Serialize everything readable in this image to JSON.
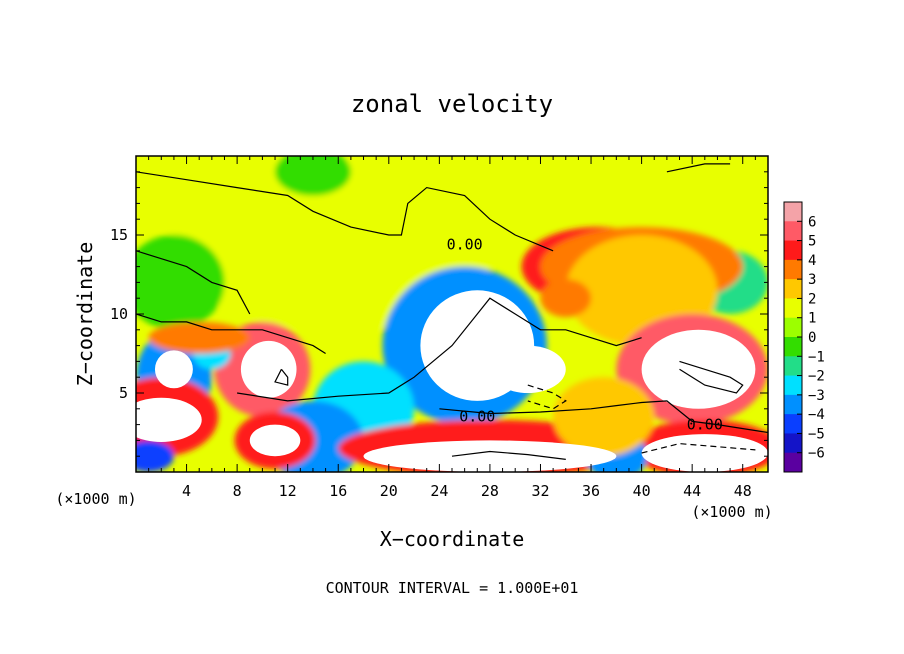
{
  "chart_data": {
    "type": "heatmap",
    "title": "zonal velocity",
    "xlabel": "X−coordinate",
    "ylabel": "Z−coordinate",
    "x_unit": "(×1000 m)",
    "xlim": [
      0,
      50
    ],
    "ylim": [
      0,
      20
    ],
    "x_ticks": [
      4,
      8,
      12,
      16,
      20,
      24,
      28,
      32,
      36,
      40,
      44,
      48
    ],
    "y_ticks": [
      5,
      10,
      15
    ],
    "contour_interval_text": "CONTOUR INTERVAL = 1.000E+01",
    "contour_labels": [
      {
        "text": "0.00",
        "x": 26,
        "y": 14.4
      },
      {
        "text": "0.00",
        "x": 27,
        "y": 3.5
      },
      {
        "text": "0.00",
        "x": 45,
        "y": 3.0
      }
    ],
    "colorbar": {
      "ticks": [
        6,
        5,
        4,
        3,
        2,
        1,
        0,
        -1,
        -2,
        -3,
        -4,
        -5,
        -6
      ],
      "tick_labels": [
        "6",
        "5",
        "4",
        "3",
        "2",
        "1",
        "0",
        "−1",
        "−2",
        "−3",
        "−4",
        "−5",
        "−6"
      ],
      "colors": [
        "#f4a3a8",
        "#ff5a66",
        "#ff1a1a",
        "#ff7a00",
        "#ffc800",
        "#e8ff00",
        "#9cff00",
        "#33dd00",
        "#22dd88",
        "#00e0ff",
        "#0090ff",
        "#0a3fff",
        "#1414c8",
        "#5a00a0"
      ]
    },
    "field_blobs": [
      {
        "x": 12,
        "y": 17,
        "rx": 12,
        "ry": 3,
        "v": 0.3
      },
      {
        "x": 16,
        "y": 13,
        "rx": 12,
        "ry": 4,
        "v": 0.6
      },
      {
        "x": 3,
        "y": 12,
        "rx": 4,
        "ry": 3,
        "v": -1.8
      },
      {
        "x": 14,
        "y": 19,
        "rx": 3,
        "ry": 1.5,
        "v": -1.5
      },
      {
        "x": 47,
        "y": 12,
        "rx": 3,
        "ry": 2,
        "v": -2
      },
      {
        "x": 26,
        "y": 8,
        "rx": 6.5,
        "ry": 5,
        "v": -4.5
      },
      {
        "x": 27,
        "y": 8,
        "rx": 4.5,
        "ry": 3.5,
        "v": -7
      },
      {
        "x": 31,
        "y": 6.5,
        "rx": 3,
        "ry": 1.5,
        "v": -7
      },
      {
        "x": 23,
        "y": 9,
        "rx": 2,
        "ry": 2,
        "v": -4
      },
      {
        "x": 10,
        "y": 6.5,
        "rx": 3.8,
        "ry": 3,
        "v": 4.5
      },
      {
        "x": 10.5,
        "y": 6.5,
        "rx": 2.2,
        "ry": 1.8,
        "v": 7
      },
      {
        "x": 3,
        "y": 6,
        "rx": 3,
        "ry": 3,
        "v": -4.5
      },
      {
        "x": 3,
        "y": 6.5,
        "rx": 1.5,
        "ry": 1.2,
        "v": -7
      },
      {
        "x": 6,
        "y": 7.5,
        "rx": 1.5,
        "ry": 1,
        "v": -3.5
      },
      {
        "x": 5,
        "y": 8.5,
        "rx": 4,
        "ry": 1,
        "v": 2.5
      },
      {
        "x": 18,
        "y": 4,
        "rx": 4,
        "ry": 3,
        "v": -3
      },
      {
        "x": 14,
        "y": 2,
        "rx": 4,
        "ry": 2.5,
        "v": -4.5
      },
      {
        "x": 11,
        "y": 2,
        "rx": 3.2,
        "ry": 1.8,
        "v": 4
      },
      {
        "x": 11,
        "y": 2,
        "rx": 2,
        "ry": 1,
        "v": 7
      },
      {
        "x": 2,
        "y": 3.5,
        "rx": 4.5,
        "ry": 2.5,
        "v": 4
      },
      {
        "x": 2,
        "y": 3.3,
        "rx": 3.2,
        "ry": 1.4,
        "v": 7
      },
      {
        "x": 1,
        "y": 1,
        "rx": 2,
        "ry": 1,
        "v": -5
      },
      {
        "x": 28,
        "y": 1.5,
        "rx": 12,
        "ry": 1.8,
        "v": 4
      },
      {
        "x": 28,
        "y": 1,
        "rx": 10,
        "ry": 1,
        "v": 7
      },
      {
        "x": 36,
        "y": 2,
        "rx": 2,
        "ry": 1,
        "v": 3
      },
      {
        "x": 36.5,
        "y": 13,
        "rx": 6,
        "ry": 2.5,
        "v": 4
      },
      {
        "x": 40,
        "y": 13,
        "rx": 8,
        "ry": 2.5,
        "v": 3
      },
      {
        "x": 40,
        "y": 11.5,
        "rx": 6,
        "ry": 3.5,
        "v": 2
      },
      {
        "x": 34,
        "y": 11,
        "rx": 2,
        "ry": 1.2,
        "v": 3
      },
      {
        "x": 44,
        "y": 6.5,
        "rx": 6,
        "ry": 3.5,
        "v": 4.5
      },
      {
        "x": 44.5,
        "y": 6.5,
        "rx": 4.5,
        "ry": 2.5,
        "v": 7
      },
      {
        "x": 45,
        "y": 1.5,
        "rx": 6,
        "ry": 1.8,
        "v": 4
      },
      {
        "x": 45,
        "y": 1.2,
        "rx": 5,
        "ry": 1.2,
        "v": 7
      },
      {
        "x": 38,
        "y": 1,
        "rx": 2.5,
        "ry": 1.5,
        "v": -4.5
      },
      {
        "x": 37,
        "y": 3.5,
        "rx": 4,
        "ry": 2.5,
        "v": 1.2
      }
    ],
    "contour_lines": [
      {
        "style": "solid",
        "points": [
          [
            0,
            19
          ],
          [
            4,
            18.5
          ],
          [
            8,
            18
          ],
          [
            12,
            17.5
          ],
          [
            14,
            16.5
          ],
          [
            17,
            15.5
          ],
          [
            20,
            15
          ],
          [
            21,
            15
          ],
          [
            21.5,
            17
          ],
          [
            23,
            18
          ],
          [
            26,
            17.5
          ],
          [
            28,
            16
          ],
          [
            30,
            15
          ],
          [
            33,
            14
          ]
        ]
      },
      {
        "style": "solid",
        "points": [
          [
            0,
            14
          ],
          [
            2,
            13.5
          ],
          [
            4,
            13
          ],
          [
            6,
            12
          ],
          [
            8,
            11.5
          ],
          [
            9,
            10
          ]
        ]
      },
      {
        "style": "solid",
        "points": [
          [
            0,
            10
          ],
          [
            2,
            9.5
          ],
          [
            4,
            9.5
          ],
          [
            6,
            9
          ],
          [
            8,
            9
          ],
          [
            10,
            9
          ],
          [
            12,
            8.5
          ],
          [
            14,
            8
          ],
          [
            15,
            7.5
          ]
        ]
      },
      {
        "style": "solid",
        "points": [
          [
            8,
            5
          ],
          [
            12,
            4.5
          ],
          [
            16,
            4.8
          ],
          [
            20,
            5
          ],
          [
            22,
            6
          ],
          [
            25,
            8
          ],
          [
            27,
            10
          ],
          [
            28,
            11
          ],
          [
            30,
            10
          ],
          [
            32,
            9
          ],
          [
            34,
            9
          ],
          [
            36,
            8.5
          ],
          [
            38,
            8
          ],
          [
            40,
            8.5
          ]
        ]
      },
      {
        "style": "solid",
        "points": [
          [
            24,
            4
          ],
          [
            28,
            3.7
          ],
          [
            32,
            3.8
          ],
          [
            36,
            4
          ],
          [
            38,
            4.2
          ],
          [
            40,
            4.4
          ],
          [
            42,
            4.5
          ],
          [
            44,
            3.2
          ],
          [
            46,
            3
          ],
          [
            50,
            2.5
          ]
        ]
      },
      {
        "style": "solid",
        "points": [
          [
            42,
            19
          ],
          [
            45,
            19.5
          ],
          [
            47,
            19.5
          ]
        ]
      },
      {
        "style": "solid",
        "points": [
          [
            43,
            7
          ],
          [
            45,
            6.5
          ],
          [
            47,
            6
          ],
          [
            48,
            5.5
          ],
          [
            47.5,
            5
          ],
          [
            45,
            5.5
          ],
          [
            43,
            6.5
          ]
        ]
      },
      {
        "style": "solid",
        "points": [
          [
            11.5,
            6.5
          ],
          [
            12,
            6
          ],
          [
            12,
            5.5
          ],
          [
            11,
            5.7
          ],
          [
            11.5,
            6.5
          ]
        ]
      },
      {
        "style": "dashed",
        "points": [
          [
            31,
            5.5
          ],
          [
            33,
            5
          ],
          [
            34,
            4.5
          ],
          [
            33,
            4
          ],
          [
            31,
            4.5
          ]
        ]
      },
      {
        "style": "dashed",
        "points": [
          [
            40,
            1.2
          ],
          [
            43,
            1.8
          ],
          [
            46,
            1.6
          ],
          [
            49,
            1.4
          ]
        ]
      },
      {
        "style": "solid",
        "points": [
          [
            25,
            1
          ],
          [
            28,
            1.3
          ],
          [
            31,
            1.1
          ],
          [
            34,
            0.8
          ]
        ]
      }
    ]
  }
}
